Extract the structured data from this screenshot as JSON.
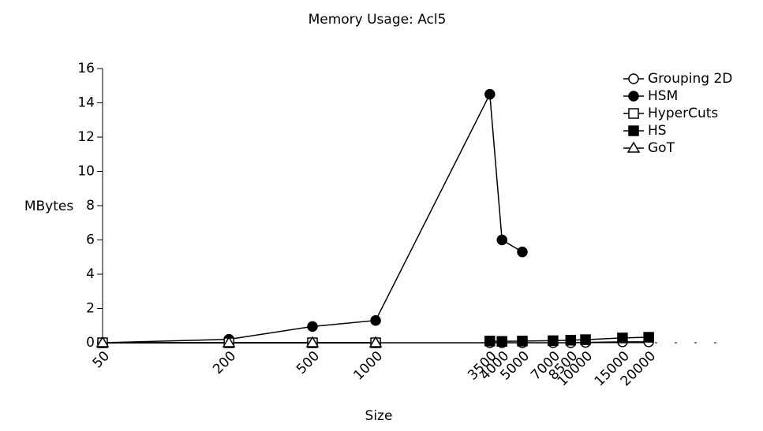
{
  "chart_data": {
    "type": "line",
    "title": "Memory Usage: Acl5",
    "xlabel": "Size",
    "ylabel": "MBytes",
    "xscale": "log",
    "x": [
      50,
      200,
      500,
      1000,
      3500,
      4000,
      5000,
      7000,
      8500,
      10000,
      15000,
      20000
    ],
    "xlim": [
      50,
      50000
    ],
    "xticks": [
      50,
      200,
      500,
      1000,
      3500,
      4000,
      5000,
      7000,
      8500,
      10000,
      15000,
      20000
    ],
    "ylim": [
      0,
      16
    ],
    "yticks": [
      0,
      2,
      4,
      6,
      8,
      10,
      12,
      14,
      16
    ],
    "legend": "upper right",
    "series": [
      {
        "name": "Grouping 2D",
        "marker": "circle",
        "filled": false,
        "color": "#000000",
        "values": [
          0,
          0,
          0,
          0,
          0,
          0,
          0,
          0,
          0,
          0.02,
          0.05,
          0.05
        ]
      },
      {
        "name": "HSM",
        "marker": "circle",
        "filled": true,
        "color": "#000000",
        "values": [
          0,
          0.2,
          0.95,
          1.3,
          14.5,
          6,
          5.3,
          null,
          null,
          null,
          null,
          null
        ]
      },
      {
        "name": "HyperCuts",
        "marker": "square",
        "filled": false,
        "color": "#000000",
        "values": [
          0,
          0,
          0,
          0,
          null,
          null,
          null,
          null,
          null,
          null,
          null,
          null
        ]
      },
      {
        "name": "HS",
        "marker": "square",
        "filled": true,
        "color": "#000000",
        "values": [
          null,
          null,
          null,
          null,
          0.1,
          0.08,
          0.1,
          0.12,
          0.15,
          0.18,
          0.28,
          0.32
        ]
      },
      {
        "name": "GoT",
        "marker": "triangle",
        "filled": false,
        "color": "#000000",
        "values": [
          0,
          0,
          0,
          0,
          null,
          null,
          null,
          null,
          null,
          null,
          null,
          null
        ]
      }
    ]
  }
}
